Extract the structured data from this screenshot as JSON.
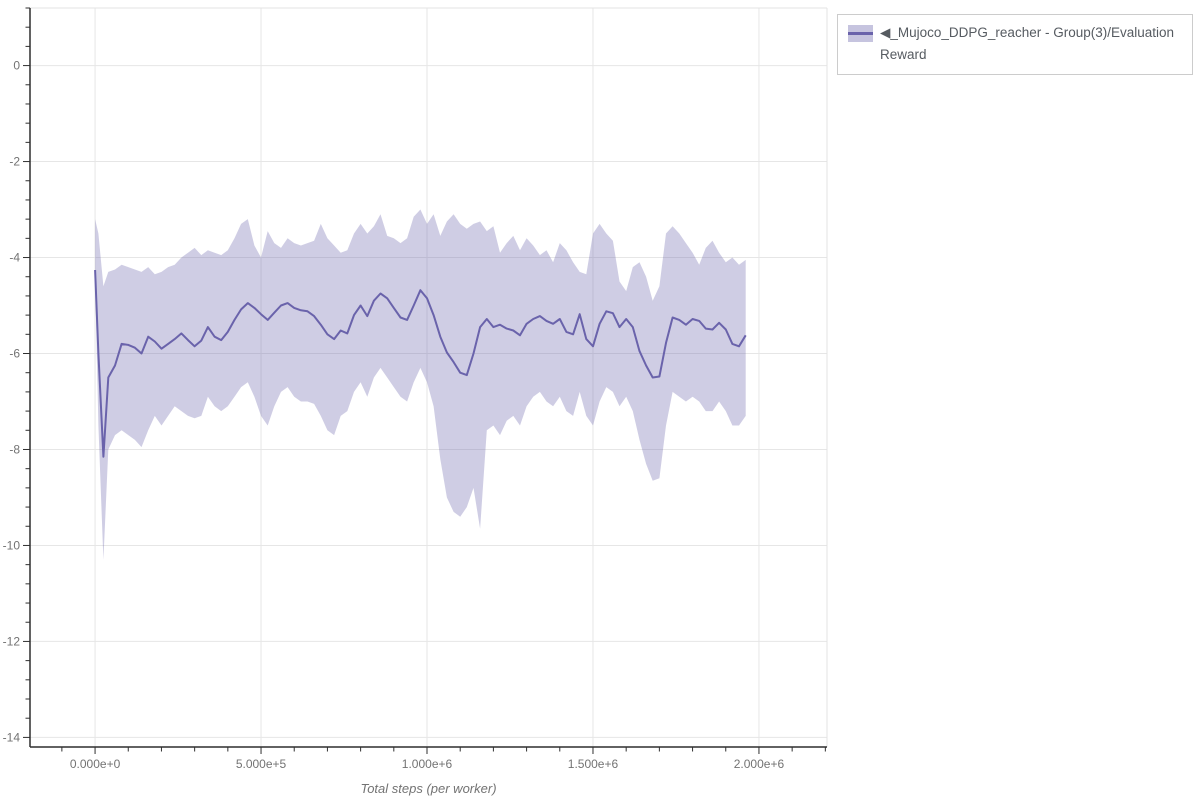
{
  "legend": {
    "label": "◀_Mujoco_DDPG_reacher - Group(3)/Evaluation Reward"
  },
  "colors": {
    "line": "#6a63ab",
    "band": "rgba(106,99,171,0.32)",
    "grid": "#e6e6e6",
    "plot_border": "#e3e3e3",
    "axis": "#2f2f2f",
    "tick_label": "#737373",
    "legend_border": "#cccccc",
    "legend_text": "#565b61"
  },
  "chart_data": {
    "type": "line",
    "title": "",
    "xlabel": "Total steps (per worker)",
    "ylabel": "",
    "grid": true,
    "legend_position": "top-right",
    "x_range": [
      -196000,
      2205000
    ],
    "y_range": [
      -14.2,
      1.2
    ],
    "x_ticks": {
      "values": [
        0,
        500000,
        1000000,
        1500000,
        2000000
      ],
      "labels": [
        "0.000e+0",
        "5.000e+5",
        "1.000e+6",
        "1.500e+6",
        "2.000e+6"
      ],
      "minor_interval": 100000
    },
    "y_ticks": {
      "values": [
        0,
        -2,
        -4,
        -6,
        -8,
        -10,
        -12,
        -14
      ],
      "labels": [
        "0",
        "-2",
        "-4",
        "-6",
        "-8",
        "-10",
        "-12",
        "-14"
      ],
      "minor_interval": 0.4
    },
    "series": [
      {
        "name": "◀_Mujoco_DDPG_reacher - Group(3)/Evaluation Reward",
        "color": "#6a63ab",
        "band_color": "rgba(106,99,171,0.32)",
        "steps": [
          0,
          10000,
          25000,
          40000,
          60000,
          80000,
          100000,
          120000,
          140000,
          160000,
          180000,
          200000,
          220000,
          240000,
          260000,
          280000,
          300000,
          320000,
          340000,
          360000,
          380000,
          400000,
          420000,
          440000,
          460000,
          480000,
          500000,
          520000,
          540000,
          560000,
          580000,
          600000,
          620000,
          640000,
          660000,
          680000,
          700000,
          720000,
          740000,
          760000,
          780000,
          800000,
          820000,
          840000,
          860000,
          880000,
          900000,
          920000,
          940000,
          960000,
          980000,
          1000000,
          1020000,
          1040000,
          1060000,
          1080000,
          1100000,
          1120000,
          1140000,
          1160000,
          1180000,
          1200000,
          1220000,
          1240000,
          1260000,
          1280000,
          1300000,
          1320000,
          1340000,
          1360000,
          1380000,
          1400000,
          1420000,
          1440000,
          1460000,
          1480000,
          1500000,
          1520000,
          1540000,
          1560000,
          1580000,
          1600000,
          1620000,
          1640000,
          1660000,
          1680000,
          1700000,
          1720000,
          1740000,
          1760000,
          1780000,
          1800000,
          1820000,
          1840000,
          1860000,
          1880000,
          1900000,
          1920000,
          1940000,
          1960000
        ],
        "mean": [
          -4.26,
          -6.0,
          -8.15,
          -6.5,
          -6.25,
          -5.8,
          -5.82,
          -5.88,
          -6.0,
          -5.65,
          -5.75,
          -5.9,
          -5.8,
          -5.7,
          -5.58,
          -5.72,
          -5.85,
          -5.73,
          -5.45,
          -5.65,
          -5.72,
          -5.55,
          -5.3,
          -5.08,
          -4.95,
          -5.05,
          -5.18,
          -5.3,
          -5.15,
          -5.0,
          -4.95,
          -5.05,
          -5.1,
          -5.12,
          -5.22,
          -5.4,
          -5.6,
          -5.7,
          -5.52,
          -5.58,
          -5.2,
          -5.0,
          -5.22,
          -4.9,
          -4.75,
          -4.85,
          -5.05,
          -5.25,
          -5.3,
          -5.0,
          -4.68,
          -4.85,
          -5.2,
          -5.65,
          -5.98,
          -6.18,
          -6.4,
          -6.45,
          -6.0,
          -5.45,
          -5.28,
          -5.45,
          -5.4,
          -5.48,
          -5.52,
          -5.62,
          -5.38,
          -5.28,
          -5.22,
          -5.32,
          -5.38,
          -5.28,
          -5.55,
          -5.6,
          -5.18,
          -5.7,
          -5.85,
          -5.38,
          -5.12,
          -5.16,
          -5.45,
          -5.28,
          -5.45,
          -5.95,
          -6.25,
          -6.5,
          -6.48,
          -5.78,
          -5.25,
          -5.3,
          -5.4,
          -5.28,
          -5.32,
          -5.48,
          -5.5,
          -5.36,
          -5.5,
          -5.8,
          -5.85,
          -5.62
        ],
        "band_upper": [
          -3.2,
          -3.5,
          -4.6,
          -4.3,
          -4.25,
          -4.15,
          -4.2,
          -4.25,
          -4.3,
          -4.2,
          -4.35,
          -4.3,
          -4.2,
          -4.15,
          -4.0,
          -3.9,
          -3.8,
          -3.95,
          -3.85,
          -3.9,
          -3.95,
          -3.85,
          -3.6,
          -3.3,
          -3.2,
          -3.75,
          -4.0,
          -3.45,
          -3.7,
          -3.8,
          -3.6,
          -3.7,
          -3.75,
          -3.7,
          -3.65,
          -3.3,
          -3.6,
          -3.75,
          -3.9,
          -3.85,
          -3.5,
          -3.3,
          -3.5,
          -3.35,
          -3.1,
          -3.55,
          -3.6,
          -3.7,
          -3.6,
          -3.15,
          -3.0,
          -3.3,
          -3.1,
          -3.55,
          -3.25,
          -3.1,
          -3.3,
          -3.4,
          -3.3,
          -3.25,
          -3.45,
          -3.35,
          -3.9,
          -3.7,
          -3.55,
          -3.85,
          -3.6,
          -3.75,
          -3.95,
          -3.85,
          -4.1,
          -3.7,
          -3.85,
          -4.1,
          -4.3,
          -4.35,
          -3.5,
          -3.3,
          -3.5,
          -3.65,
          -4.5,
          -4.7,
          -4.2,
          -4.1,
          -4.4,
          -4.9,
          -4.6,
          -3.5,
          -3.35,
          -3.5,
          -3.7,
          -3.9,
          -4.15,
          -3.8,
          -3.65,
          -3.9,
          -4.1,
          -4.0,
          -4.15,
          -4.05
        ],
        "band_lower": [
          -4.5,
          -7.5,
          -10.3,
          -8.0,
          -7.7,
          -7.6,
          -7.7,
          -7.8,
          -7.95,
          -7.6,
          -7.3,
          -7.5,
          -7.3,
          -7.1,
          -7.2,
          -7.3,
          -7.35,
          -7.3,
          -6.9,
          -7.1,
          -7.2,
          -7.1,
          -6.9,
          -6.7,
          -6.6,
          -6.9,
          -7.3,
          -7.5,
          -7.1,
          -6.8,
          -6.7,
          -6.9,
          -7.0,
          -7.0,
          -7.05,
          -7.3,
          -7.6,
          -7.7,
          -7.3,
          -7.2,
          -6.8,
          -6.6,
          -6.9,
          -6.5,
          -6.3,
          -6.5,
          -6.7,
          -6.9,
          -7.0,
          -6.6,
          -6.3,
          -6.6,
          -7.1,
          -8.2,
          -9.0,
          -9.3,
          -9.4,
          -9.2,
          -8.8,
          -9.65,
          -7.6,
          -7.5,
          -7.7,
          -7.4,
          -7.3,
          -7.5,
          -7.1,
          -6.9,
          -6.8,
          -7.0,
          -7.1,
          -6.9,
          -7.2,
          -7.3,
          -6.8,
          -7.3,
          -7.5,
          -7.0,
          -6.7,
          -6.8,
          -7.1,
          -6.9,
          -7.2,
          -7.8,
          -8.3,
          -8.65,
          -8.6,
          -7.5,
          -6.8,
          -6.9,
          -7.0,
          -6.9,
          -7.0,
          -7.2,
          -7.2,
          -7.0,
          -7.2,
          -7.5,
          -7.5,
          -7.3
        ]
      }
    ]
  }
}
